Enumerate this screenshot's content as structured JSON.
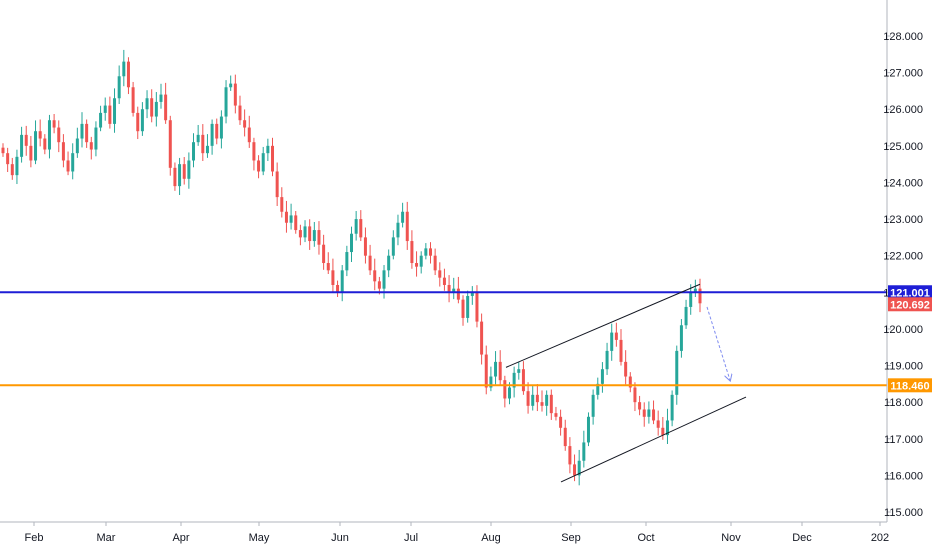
{
  "chart_data": {
    "type": "candlestick",
    "x_ticks": [
      "Feb",
      "Mar",
      "Apr",
      "May",
      "Jun",
      "Jul",
      "Aug",
      "Sep",
      "Oct",
      "Nov",
      "Dec",
      "202"
    ],
    "y_ticks": [
      "128.000",
      "127.000",
      "126.000",
      "125.000",
      "124.000",
      "123.000",
      "122.000",
      "121.000",
      "120.000",
      "119.000",
      "118.000",
      "117.000",
      "116.000",
      "115.000"
    ],
    "ylim": [
      114.85,
      128.35
    ],
    "grid": false,
    "colors": {
      "up": "#26a69a",
      "down": "#ef5350",
      "axis_text": "#131722",
      "axis_line": "#b2b5be"
    },
    "price_series": [
      124.8,
      124.5,
      124.2,
      124.7,
      125.3,
      125.0,
      124.6,
      125.4,
      125.2,
      124.9,
      125.7,
      125.5,
      125.1,
      124.6,
      124.3,
      124.8,
      125.2,
      125.6,
      125.1,
      124.9,
      125.5,
      125.9,
      126.1,
      125.6,
      126.3,
      126.9,
      127.3,
      126.6,
      125.9,
      125.4,
      126.0,
      126.3,
      125.8,
      126.2,
      126.4,
      125.7,
      124.4,
      123.9,
      124.5,
      124.1,
      124.6,
      125.1,
      125.3,
      124.8,
      125.0,
      125.6,
      125.2,
      125.8,
      126.6,
      126.7,
      126.1,
      125.7,
      125.5,
      125.1,
      124.6,
      124.3,
      124.8,
      125.0,
      124.3,
      123.6,
      123.2,
      122.9,
      123.1,
      122.7,
      122.5,
      122.8,
      122.4,
      122.7,
      122.3,
      121.8,
      121.6,
      121.2,
      121.0,
      121.6,
      122.1,
      122.6,
      123.0,
      122.5,
      122.0,
      121.6,
      121.3,
      121.1,
      121.6,
      122.0,
      122.5,
      122.9,
      123.2,
      122.4,
      121.8,
      121.7,
      122.0,
      122.2,
      122.0,
      121.6,
      121.4,
      121.2,
      121.0,
      121.1,
      120.8,
      120.3,
      120.9,
      121.0,
      120.2,
      119.3,
      118.4,
      118.7,
      119.1,
      118.6,
      118.1,
      118.4,
      118.8,
      118.9,
      118.3,
      117.9,
      118.2,
      118.0,
      117.9,
      118.2,
      117.7,
      117.6,
      117.3,
      116.8,
      116.3,
      116.0,
      116.4,
      116.9,
      117.6,
      118.2,
      118.5,
      118.9,
      119.4,
      119.9,
      119.7,
      119.1,
      118.7,
      118.4,
      118.0,
      117.8,
      117.6,
      117.8,
      117.5,
      117.3,
      117.1,
      117.5,
      118.2,
      119.4,
      120.1,
      120.6,
      121.0,
      121.1,
      120.7
    ],
    "price_lines": [
      {
        "label": "121.001",
        "value": 121.001,
        "color": "#1e1ed6"
      },
      {
        "label": "118.460",
        "value": 118.46,
        "color": "#ff9800"
      }
    ],
    "last_price": {
      "label": "120.692",
      "value": 120.692,
      "color": "#ef5350"
    },
    "drawings": [
      {
        "kind": "trendline",
        "color": "#131722",
        "points": [
          [
            506,
            118.95
          ],
          [
            700,
            121.22
          ]
        ]
      },
      {
        "kind": "trendline",
        "color": "#131722",
        "points": [
          [
            561,
            115.82
          ],
          [
            746,
            118.14
          ]
        ]
      },
      {
        "kind": "arrow",
        "color": "#7f8cf0",
        "dashed": true,
        "points": [
          [
            707,
            120.6
          ],
          [
            730,
            118.6
          ]
        ]
      }
    ]
  }
}
